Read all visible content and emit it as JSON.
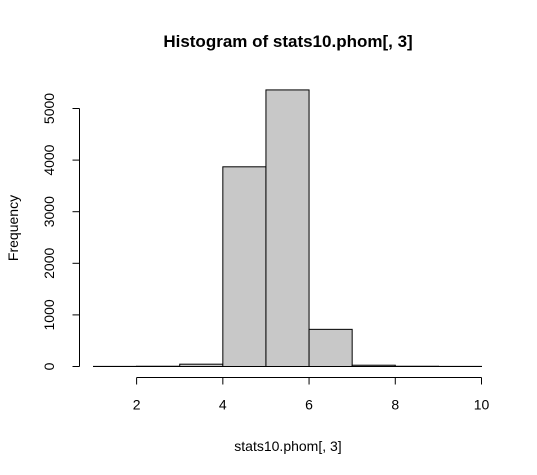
{
  "chart_data": {
    "type": "bar",
    "title": "Histogram of stats10.phom[, 3]",
    "xlabel": "stats10.phom[, 3]",
    "ylabel": "Frequency",
    "xlim": [
      1,
      10
    ],
    "ylim": [
      0,
      5400
    ],
    "x_ticks": [
      2,
      4,
      6,
      8,
      10
    ],
    "y_ticks": [
      0,
      1000,
      2000,
      3000,
      4000,
      5000
    ],
    "bins": [
      {
        "start": 1,
        "end": 2,
        "count": 2
      },
      {
        "start": 2,
        "end": 3,
        "count": 5
      },
      {
        "start": 3,
        "end": 4,
        "count": 45
      },
      {
        "start": 4,
        "end": 5,
        "count": 3870
      },
      {
        "start": 5,
        "end": 6,
        "count": 5360
      },
      {
        "start": 6,
        "end": 7,
        "count": 720
      },
      {
        "start": 7,
        "end": 8,
        "count": 25
      },
      {
        "start": 8,
        "end": 9,
        "count": 5
      },
      {
        "start": 9,
        "end": 10,
        "count": 2
      }
    ],
    "colors": {
      "bar_fill": "#c8c8c8",
      "bar_stroke": "#000000"
    },
    "grid": false,
    "legend": "none"
  }
}
